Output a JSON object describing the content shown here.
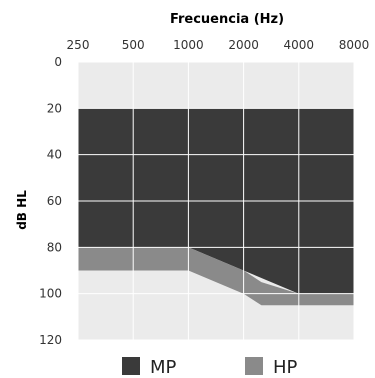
{
  "chart_data": {
    "type": "area",
    "title": "Frecuencia (Hz)",
    "ylabel": "dB HL",
    "x_ticks": [
      "250",
      "500",
      "1000",
      "2000",
      "4000",
      "8000"
    ],
    "y_ticks": [
      "0",
      "20",
      "40",
      "60",
      "80",
      "100",
      "120"
    ],
    "ylim": [
      0,
      120
    ],
    "y_inverted": true,
    "x_scale": "log",
    "grid": true,
    "legend_position": "bottom",
    "series": [
      {
        "name": "MP",
        "color": "#3a3a3a",
        "x": [
          250,
          500,
          1000,
          2000,
          4000,
          8000
        ],
        "top": [
          20,
          20,
          20,
          20,
          20,
          20
        ],
        "bottom": [
          80,
          80,
          80,
          90,
          100,
          100
        ]
      },
      {
        "name": "HP",
        "color": "#8a8a8a",
        "x": [
          250,
          500,
          1000,
          2000,
          2500,
          4000,
          8000
        ],
        "top": [
          80,
          80,
          80,
          90,
          95,
          100,
          100
        ],
        "bottom": [
          90,
          90,
          90,
          100,
          105,
          105,
          105
        ]
      }
    ],
    "plot_background": "#ebebeb",
    "grid_color": "#ffffff"
  }
}
